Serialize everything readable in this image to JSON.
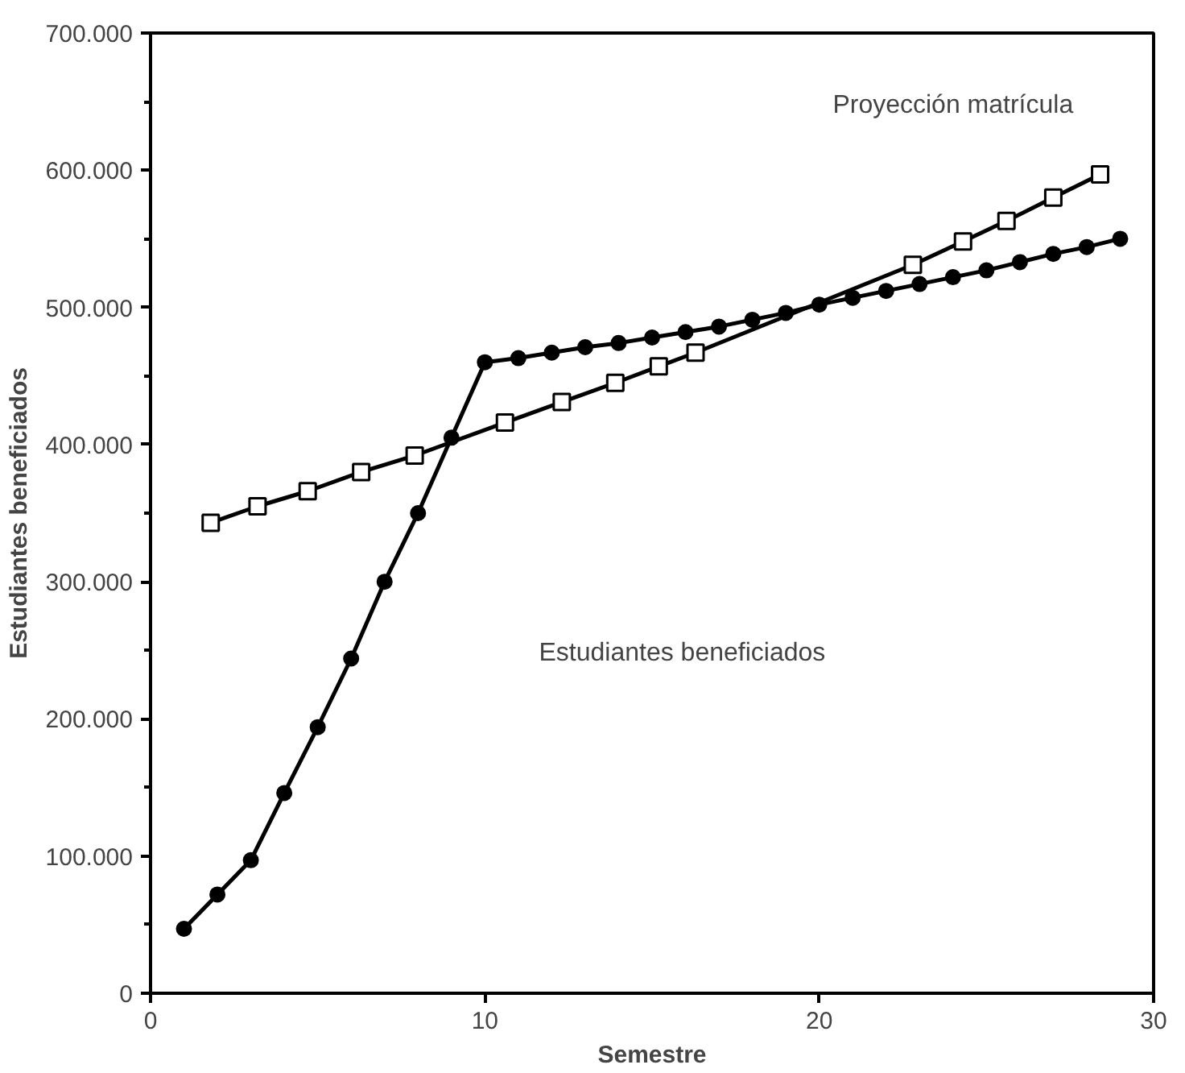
{
  "chart_data": {
    "type": "line",
    "xlabel": "Semestre",
    "ylabel": "Estudiantes beneficiados",
    "xlim": [
      0,
      30
    ],
    "xticks": [
      0,
      10,
      20,
      30
    ],
    "ylim": [
      0,
      700000
    ],
    "yticks": [
      {
        "value": 0,
        "label": "0"
      },
      {
        "value": 100000,
        "label": "100.000"
      },
      {
        "value": 200000,
        "label": "200.000"
      },
      {
        "value": 300000,
        "label": "300.000"
      },
      {
        "value": 400000,
        "label": "400.000"
      },
      {
        "value": 500000,
        "label": "500.000"
      },
      {
        "value": 600000,
        "label": "600.000"
      },
      {
        "value": 700000,
        "label": "700.000"
      }
    ],
    "grid": false,
    "series": [
      {
        "color": "#000000",
        "marker": "circle",
        "x": [
          1,
          2,
          3,
          4,
          5,
          6,
          7,
          8,
          9,
          10,
          11,
          12,
          13,
          14,
          15,
          16,
          17,
          18,
          19,
          20,
          21,
          22,
          23,
          24,
          25,
          26,
          27,
          28,
          29
        ],
        "values": [
          47000,
          72000,
          97000,
          146000,
          194000,
          244000,
          300000,
          350000,
          405000,
          460000,
          463000,
          467000,
          471000,
          474000,
          478000,
          482000,
          486000,
          491000,
          496000,
          502000,
          507000,
          512000,
          517000,
          522000,
          527000,
          533000,
          539000,
          544000,
          550000
        ]
      },
      {
        "color": "#000000",
        "marker": "square",
        "x": [
          1.8,
          3.2,
          4.7,
          6.3,
          7.9,
          10.6,
          12.3,
          13.9,
          15.2,
          16.3,
          22.8,
          24.3,
          25.6,
          27.0,
          28.4
        ],
        "values": [
          343000,
          355000,
          366000,
          380000,
          392000,
          416000,
          431000,
          445000,
          457000,
          467000,
          531000,
          548000,
          563000,
          580000,
          597000
        ]
      }
    ],
    "annotations": [
      "Proyección matrícula",
      "Estudiantes beneficiados"
    ]
  }
}
